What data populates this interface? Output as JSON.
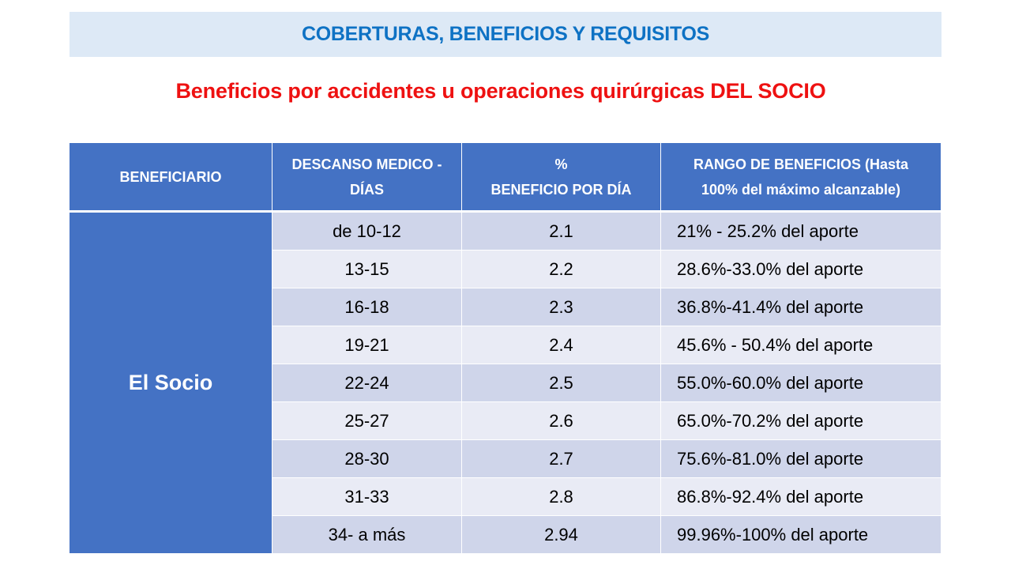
{
  "header": {
    "title": "COBERTURAS, BENEFICIOS Y REQUISITOS",
    "subtitle": "Beneficios por accidentes u operaciones quirúrgicas DEL SOCIO"
  },
  "table": {
    "columns": {
      "beneficiary": "BENEFICIARIO",
      "days_line1": "DESCANSO MEDICO -",
      "days_line2": "DÍAS",
      "percent_line1": "%",
      "percent_line2": "BENEFICIO POR DÍA",
      "range_line1": "RANGO DE BENEFICIOS (Hasta",
      "range_line2": "100% del máximo alcanzable)"
    },
    "beneficiary": "El Socio",
    "rows": [
      {
        "days": "de 10-12",
        "percent": "2.1",
        "range": "21% - 25.2% del aporte"
      },
      {
        "days": "13-15",
        "percent": "2.2",
        "range": "28.6%-33.0% del aporte"
      },
      {
        "days": "16-18",
        "percent": "2.3",
        "range": "36.8%-41.4% del aporte"
      },
      {
        "days": "19-21",
        "percent": "2.4",
        "range": "45.6% - 50.4% del aporte"
      },
      {
        "days": "22-24",
        "percent": "2.5",
        "range": "55.0%-60.0% del aporte"
      },
      {
        "days": "25-27",
        "percent": "2.6",
        "range": "65.0%-70.2% del aporte"
      },
      {
        "days": "28-30",
        "percent": "2.7",
        "range": "75.6%-81.0% del aporte"
      },
      {
        "days": "31-33",
        "percent": "2.8",
        "range": "86.8%-92.4% del aporte"
      },
      {
        "days": "34- a más",
        "percent": "2.94",
        "range": "99.96%-100% del aporte"
      }
    ]
  },
  "colors": {
    "banner_bg": "#dde9f6",
    "banner_text": "#0e72c4",
    "subtitle_text": "#ee1111",
    "header_bg": "#4472c4",
    "row_dark": "#cfd5ea",
    "row_light": "#e9ebf5"
  }
}
